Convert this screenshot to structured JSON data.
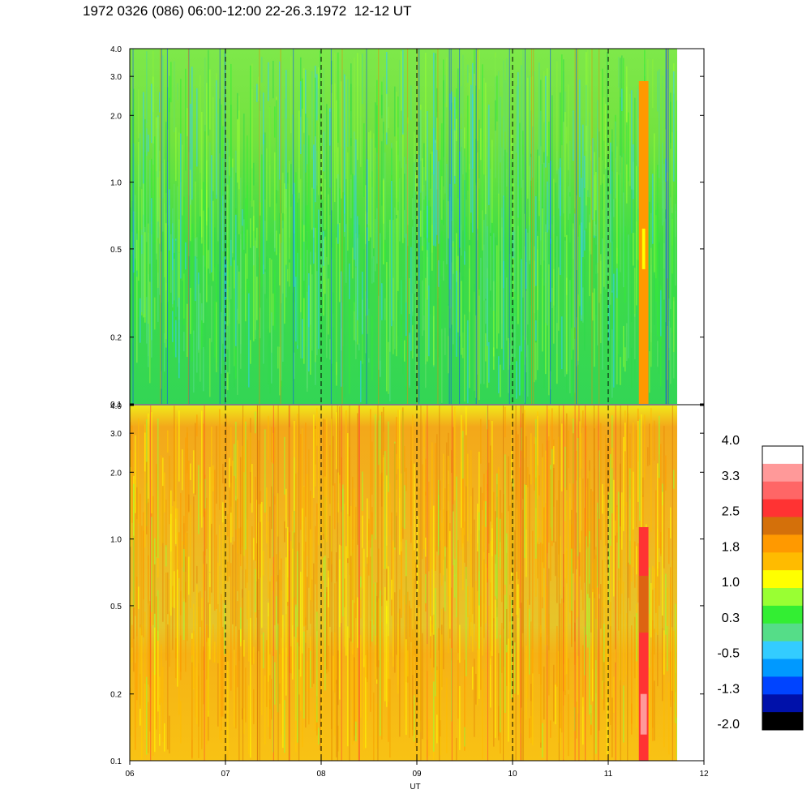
{
  "title": "1972 0326 (086) 06:00-12:00 22-26.3.1972  12-12 UT",
  "colors": {
    "background": "#ffffff",
    "axis": "#000000",
    "marker_line": "#000000"
  },
  "chart_data": [
    {
      "type": "heatmap",
      "panel": "upper",
      "x_range": [
        6,
        12
      ],
      "y_scale": "log",
      "y_range": [
        0.1,
        4.0
      ],
      "y_ticks": [
        "4.0",
        "3.0",
        "2.0",
        "1.0",
        "0.5",
        "0.2",
        "0.1"
      ],
      "y_tick_values": [
        4.0,
        3.0,
        2.0,
        1.0,
        0.5,
        0.2,
        0.1
      ],
      "dominant_levels": [
        "0.3",
        "1.0",
        "-0.5"
      ],
      "data_end_x": 11.75,
      "event_x": [
        11.32,
        11.42
      ]
    },
    {
      "type": "heatmap",
      "panel": "lower",
      "x_range": [
        6,
        12
      ],
      "y_scale": "log",
      "y_range": [
        0.1,
        4.0
      ],
      "y_ticks": [
        "4.0",
        "3.0",
        "2.0",
        "1.0",
        "0.5",
        "0.2",
        "0.1"
      ],
      "y_tick_values": [
        4.0,
        3.0,
        2.0,
        1.0,
        0.5,
        0.2,
        0.1
      ],
      "dominant_levels": [
        "1.8",
        "1.0",
        "2.5"
      ],
      "data_end_x": 11.75,
      "event_x": [
        11.32,
        11.42
      ]
    }
  ],
  "x_axis": {
    "label": "UT",
    "ticks": [
      "06",
      "07",
      "08",
      "09",
      "10",
      "11",
      "12"
    ],
    "tick_values": [
      6,
      7,
      8,
      9,
      10,
      11,
      12
    ],
    "dashed_lines_at": [
      7,
      8,
      9,
      10,
      11
    ]
  },
  "colorbar": {
    "labels": [
      "4.0",
      "3.3",
      "2.5",
      "1.8",
      "1.0",
      "0.3",
      "-0.5",
      "-1.3",
      "-2.0"
    ],
    "colors": [
      "#ffffff",
      "#ff9999",
      "#ff6666",
      "#ff3333",
      "#d4700a",
      "#ff9900",
      "#ffbb00",
      "#ffff00",
      "#99ff33",
      "#33ee33",
      "#55dd88",
      "#33ccff",
      "#0099ff",
      "#0044ff",
      "#0011aa",
      "#000000"
    ]
  }
}
